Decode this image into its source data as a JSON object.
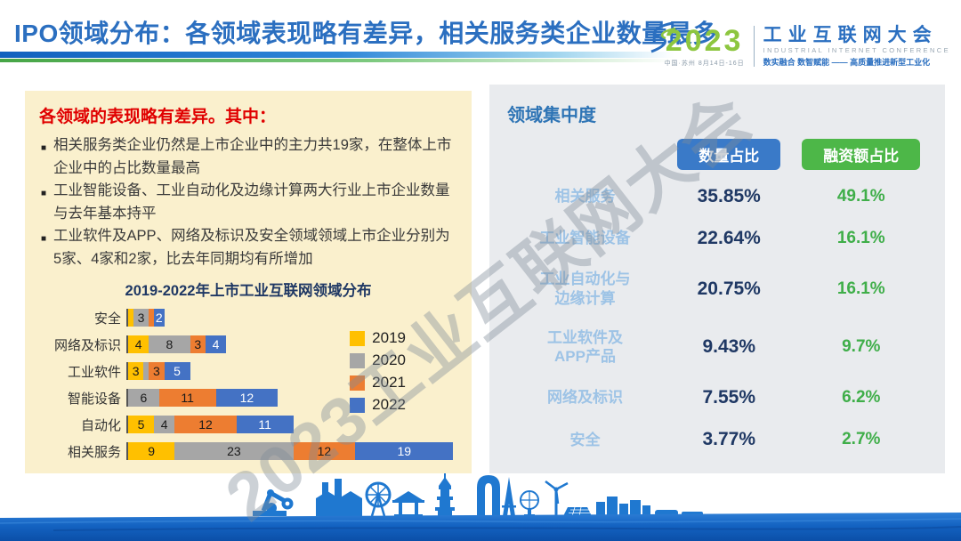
{
  "header": {
    "title": "IPO领域分布：各领域表现略有差异，相关服务类企业数量最多",
    "logo": {
      "year": "2023",
      "date_line": "中国·苏州 8月14日-16日",
      "name": "工业互联网大会",
      "name_en": "INDUSTRIAL INTERNET CONFERENCE",
      "slogan": "数实融合 数智赋能 —— 高质量推进新型工业化"
    }
  },
  "left_panel": {
    "heading": "各领域的表现略有差异。其中：",
    "bullets": [
      "相关服务类企业仍然是上市企业中的主力共19家，在整体上市企业中的占比数量最高",
      "工业智能设备、工业自动化及边缘计算两大行业上市企业数量与去年基本持平",
      "工业软件及APP、网络及标识及安全领域领域上市企业分别为5家、4家和2家，比去年同期均有所增加"
    ]
  },
  "chart_data": [
    {
      "type": "bar",
      "title": "2019-2022年上市工业互联网领域分布",
      "orientation": "horizontal_stacked",
      "categories": [
        "安全",
        "网络及标识",
        "工业软件",
        "智能设备",
        "自动化",
        "相关服务"
      ],
      "series": [
        {
          "name": "2019",
          "color": "#FFC000",
          "values": [
            1,
            4,
            3,
            0,
            5,
            9
          ]
        },
        {
          "name": "2020",
          "color": "#A6A6A6",
          "values": [
            3,
            8,
            1,
            6,
            4,
            23
          ]
        },
        {
          "name": "2021",
          "color": "#ED7D31",
          "values": [
            1,
            3,
            3,
            11,
            12,
            12
          ]
        },
        {
          "name": "2022",
          "color": "#4472C4",
          "values": [
            2,
            4,
            5,
            12,
            11,
            19
          ]
        }
      ],
      "xlim": [
        0,
        63
      ],
      "legend_position": "right",
      "value_labels": "inside, hidden when value < 2",
      "grid": false
    },
    {
      "type": "table",
      "title": "领域集中度",
      "columns": [
        "数量占比",
        "融资额占比"
      ],
      "column_colors": [
        "#3A7AC8",
        "#4DB748"
      ],
      "rows": [
        {
          "label": "相关服务",
          "values": [
            "35.85%",
            "49.1%"
          ]
        },
        {
          "label": "工业智能设备",
          "values": [
            "22.64%",
            "16.1%"
          ]
        },
        {
          "label": "工业自动化与\n边缘计算",
          "values": [
            "20.75%",
            "16.1%"
          ]
        },
        {
          "label": "工业软件及\nAPP产品",
          "values": [
            "9.43%",
            "9.7%"
          ]
        },
        {
          "label": "网络及标识",
          "values": [
            "7.55%",
            "6.2%"
          ]
        },
        {
          "label": "安全",
          "values": [
            "3.77%",
            "2.7%"
          ]
        }
      ]
    }
  ],
  "watermark": "2023工业互联网大会",
  "colors": {
    "title_blue": "#2B6FC0",
    "left_panel_bg": "#FAF0CD",
    "right_panel_bg": "#E9EBEE",
    "heading_red": "#E00000",
    "navy_value": "#1F3864",
    "green_value": "#3FAE49",
    "row_label_blue": "#9DC3E6",
    "skyline_blue": "#1F78D0"
  }
}
